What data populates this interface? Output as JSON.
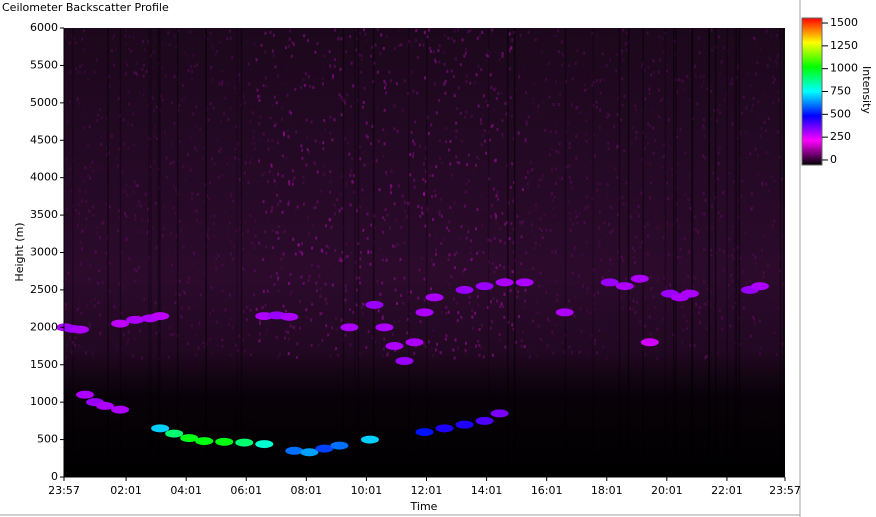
{
  "chart_data": {
    "type": "heatmap",
    "title": "Ceilometer Backscatter Profile",
    "x_label": "Time",
    "y_label": "Height (m)",
    "colorbar_label": "Intensity",
    "xlim": [
      0,
      1440
    ],
    "xticks": [
      {
        "value": 0,
        "label": "23:57"
      },
      {
        "value": 124,
        "label": "02:01"
      },
      {
        "value": 244,
        "label": "04:01"
      },
      {
        "value": 364,
        "label": "06:01"
      },
      {
        "value": 484,
        "label": "08:01"
      },
      {
        "value": 604,
        "label": "10:01"
      },
      {
        "value": 724,
        "label": "12:01"
      },
      {
        "value": 844,
        "label": "14:01"
      },
      {
        "value": 964,
        "label": "16:01"
      },
      {
        "value": 1084,
        "label": "18:01"
      },
      {
        "value": 1204,
        "label": "20:01"
      },
      {
        "value": 1324,
        "label": "22:01"
      },
      {
        "value": 1440,
        "label": "23:57"
      }
    ],
    "ylim": [
      0,
      6000
    ],
    "yticks": [
      0,
      500,
      1000,
      1500,
      2000,
      2500,
      3000,
      3500,
      4000,
      4500,
      5000,
      5500,
      6000
    ],
    "zlim": [
      -55,
      1555
    ],
    "zticks": [
      0,
      250,
      500,
      750,
      1000,
      1250,
      1500
    ],
    "colormap": [
      "#000000",
      "#ff00ff",
      "#0000ff",
      "#00ffff",
      "#00ff00",
      "#ffff00",
      "#ff0000"
    ],
    "x": [
      2,
      17,
      32,
      112,
      142,
      172,
      192,
      42,
      62,
      82,
      112,
      192,
      220,
      250,
      280,
      320,
      360,
      400,
      400,
      425,
      450,
      460,
      490,
      520,
      550,
      611,
      570,
      620,
      640,
      660,
      680,
      700,
      720,
      720,
      760,
      800,
      840,
      870,
      740,
      800,
      840,
      880,
      920,
      1000,
      1090,
      1120,
      1150,
      1170,
      1210,
      1230,
      1250,
      1370,
      1390
    ],
    "y": [
      2000,
      1980,
      1970,
      2050,
      2100,
      2120,
      2150,
      1100,
      1000,
      950,
      900,
      650,
      580,
      520,
      480,
      470,
      460,
      440,
      2150,
      2160,
      2140,
      350,
      330,
      380,
      420,
      500,
      2000,
      2300,
      2000,
      1750,
      1550,
      1800,
      2200,
      600,
      650,
      700,
      750,
      850,
      2400,
      2500,
      2550,
      2600,
      2600,
      2200,
      2600,
      2550,
      2650,
      1800,
      2450,
      2400,
      2450,
      2500,
      2550
    ],
    "values": [
      300,
      320,
      300,
      280,
      300,
      300,
      280,
      300,
      320,
      300,
      300,
      700,
      900,
      1000,
      1000,
      1000,
      900,
      800,
      300,
      320,
      300,
      600,
      650,
      550,
      600,
      700,
      300,
      320,
      300,
      300,
      320,
      300,
      300,
      500,
      450,
      450,
      400,
      350,
      300,
      320,
      320,
      300,
      300,
      300,
      320,
      300,
      300,
      260,
      320,
      300,
      300,
      320,
      300
    ]
  }
}
